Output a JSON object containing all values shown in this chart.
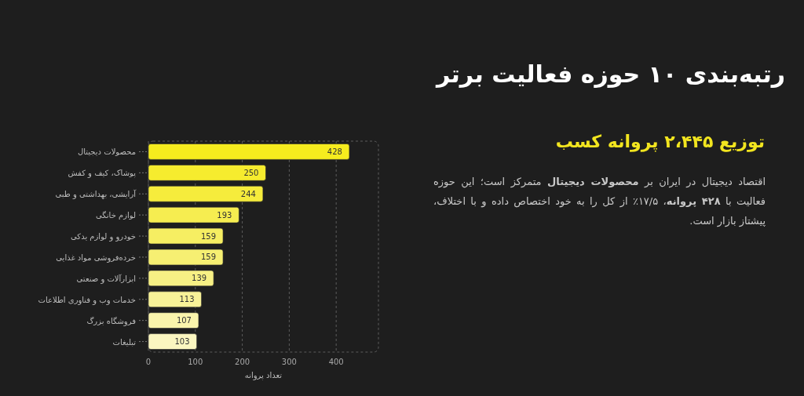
{
  "chart_data": {
    "type": "bar",
    "orientation": "horizontal",
    "title": "رتبه‌بندی ۱۰ حوزه فعالیت برتر",
    "subtitle": "توزیع ۲،۴۴۵ پروانه کسب",
    "annotations": [
      "اقتصاد دیجیتال در ایران بر **محصولات دیجیتال** متمرکز است؛ این حوزه فعالیت با **۴۲۸ پروانه**، ۱۷/۵٪ از کل را به خود اختصاص داده و با اختلاف، پیشتاز بازار است."
    ],
    "categories": [
      "محصولات دیجیتال",
      "پوشاک، کیف و کفش",
      "آرایشی، بهداشتی و طبی",
      "لوازم خانگی",
      "خودرو و لوازم یدکی",
      "خرده‌فروشی مواد غذایی",
      "ابزارآلات و صنعتی",
      "خدمات وب و فناوری اطلاعات",
      "فروشگاه بزرگ",
      "تبلیغات"
    ],
    "values": [
      428,
      250,
      244,
      193,
      159,
      159,
      139,
      113,
      107,
      103
    ],
    "colors": [
      "#f6ec1e",
      "#f6ec2e",
      "#f6ec3c",
      "#f6ed50",
      "#f6ee62",
      "#f6ef72",
      "#f7f084",
      "#f8f298",
      "#faf4ac",
      "#fbf6c0"
    ],
    "xlabel": "تعداد پروانه",
    "xlim": [
      0,
      490
    ],
    "xticks": [
      0,
      100,
      200,
      300,
      400
    ],
    "grid": "x",
    "data_labels": true
  }
}
